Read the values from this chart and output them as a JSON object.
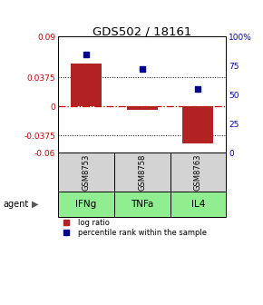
{
  "title": "GDS502 / 18161",
  "samples": [
    "GSM8753",
    "GSM8758",
    "GSM8763"
  ],
  "agents": [
    "IFNg",
    "TNFa",
    "IL4"
  ],
  "log_ratios": [
    0.055,
    -0.005,
    -0.048
  ],
  "percentile_ranks": [
    85,
    72,
    55
  ],
  "ylim_left": [
    -0.06,
    0.09
  ],
  "ylim_right": [
    0,
    100
  ],
  "yticks_left": [
    0.09,
    0.0375,
    0,
    -0.0375,
    -0.06
  ],
  "ytick_labels_left": [
    "0.09",
    "0.0375",
    "0",
    "-0.0375",
    "-0.06"
  ],
  "yticks_right": [
    100,
    75,
    50,
    25,
    0
  ],
  "ytick_labels_right": [
    "100%",
    "75",
    "50",
    "25",
    "0"
  ],
  "hlines": [
    0.0375,
    -0.0375
  ],
  "bar_color": "#b22222",
  "dot_color": "#00008b",
  "agent_colors": [
    "#90ee90",
    "#90ee90",
    "#90ee90"
  ],
  "sample_bg": "#d3d3d3",
  "legend_bar_label": "log ratio",
  "legend_dot_label": "percentile rank within the sample"
}
